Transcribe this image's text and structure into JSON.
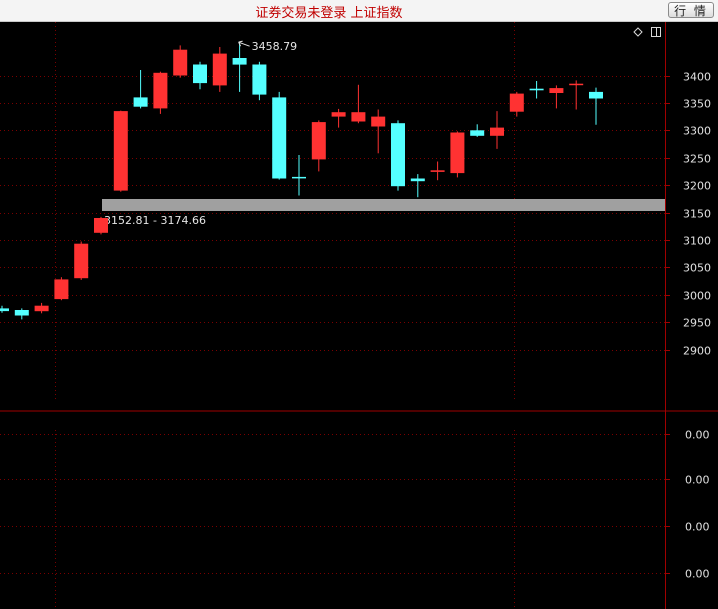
{
  "window": {
    "title": "证券交易未登录 上证指数",
    "quote_button": "行 情"
  },
  "icons": {
    "diamond": "diamond-icon",
    "panel": "panel-toggle-icon"
  },
  "colors": {
    "up": "#ff3232",
    "down": "#54ffff",
    "grid": "#7a0000",
    "band": "#a0a0a0"
  },
  "chart_data": {
    "type": "candlestick",
    "ylim": [
      2855,
      3440
    ],
    "y_ticks": [
      "3400",
      "3350",
      "3300",
      "3250",
      "3200",
      "3150",
      "3100",
      "3050",
      "3000",
      "2950",
      "2900"
    ],
    "candles": [
      {
        "o": 2975,
        "c": 2970,
        "h": 2980,
        "l": 2967
      },
      {
        "o": 2972,
        "c": 2962,
        "h": 2975,
        "l": 2955
      },
      {
        "o": 2970,
        "c": 2980,
        "h": 2985,
        "l": 2966
      },
      {
        "o": 2992,
        "c": 3028,
        "h": 3032,
        "l": 2990
      },
      {
        "o": 3030,
        "c": 3093,
        "h": 3097,
        "l": 3027
      },
      {
        "o": 3113,
        "c": 3140,
        "h": 3142,
        "l": 3110
      },
      {
        "o": 3190,
        "c": 3335,
        "h": 3336,
        "l": 3188
      },
      {
        "o": 3360,
        "c": 3343,
        "h": 3410,
        "l": 3340
      },
      {
        "o": 3340,
        "c": 3405,
        "h": 3407,
        "l": 3330
      },
      {
        "o": 3400,
        "c": 3447,
        "h": 3455,
        "l": 3396
      },
      {
        "o": 3420,
        "c": 3386,
        "h": 3425,
        "l": 3375
      },
      {
        "o": 3382,
        "c": 3440,
        "h": 3452,
        "l": 3370
      },
      {
        "o": 3432,
        "c": 3420,
        "h": 3459,
        "l": 3370
      },
      {
        "o": 3420,
        "c": 3365,
        "h": 3425,
        "l": 3355
      },
      {
        "o": 3360,
        "c": 3212,
        "h": 3370,
        "l": 3210
      },
      {
        "o": 3215,
        "c": 3213,
        "h": 3255,
        "l": 3181
      },
      {
        "o": 3247,
        "c": 3315,
        "h": 3318,
        "l": 3225
      },
      {
        "o": 3325,
        "c": 3333,
        "h": 3339,
        "l": 3305
      },
      {
        "o": 3316,
        "c": 3333,
        "h": 3383,
        "l": 3313
      },
      {
        "o": 3307,
        "c": 3325,
        "h": 3338,
        "l": 3258
      },
      {
        "o": 3313,
        "c": 3198,
        "h": 3318,
        "l": 3190
      },
      {
        "o": 3212,
        "c": 3207,
        "h": 3220,
        "l": 3178
      },
      {
        "o": 3224,
        "c": 3227,
        "h": 3243,
        "l": 3209
      },
      {
        "o": 3222,
        "c": 3296,
        "h": 3298,
        "l": 3214
      },
      {
        "o": 3300,
        "c": 3290,
        "h": 3311,
        "l": 3288
      },
      {
        "o": 3290,
        "c": 3305,
        "h": 3335,
        "l": 3266
      },
      {
        "o": 3334,
        "c": 3367,
        "h": 3370,
        "l": 3325
      },
      {
        "o": 3376,
        "c": 3373,
        "h": 3390,
        "l": 3358
      },
      {
        "o": 3368,
        "c": 3377,
        "h": 3382,
        "l": 3340
      },
      {
        "o": 3383,
        "c": 3385,
        "h": 3391,
        "l": 3338
      },
      {
        "o": 3370,
        "c": 3358,
        "h": 3378,
        "l": 3310
      }
    ],
    "max_label": "3458.79",
    "gap_band": {
      "low": 3152.81,
      "high": 3174.66,
      "label": "3152.81 - 3174.66"
    },
    "volume_panel": {
      "tick_labels": [
        "0.00",
        "0.00",
        "0.00",
        "0.00"
      ]
    }
  }
}
